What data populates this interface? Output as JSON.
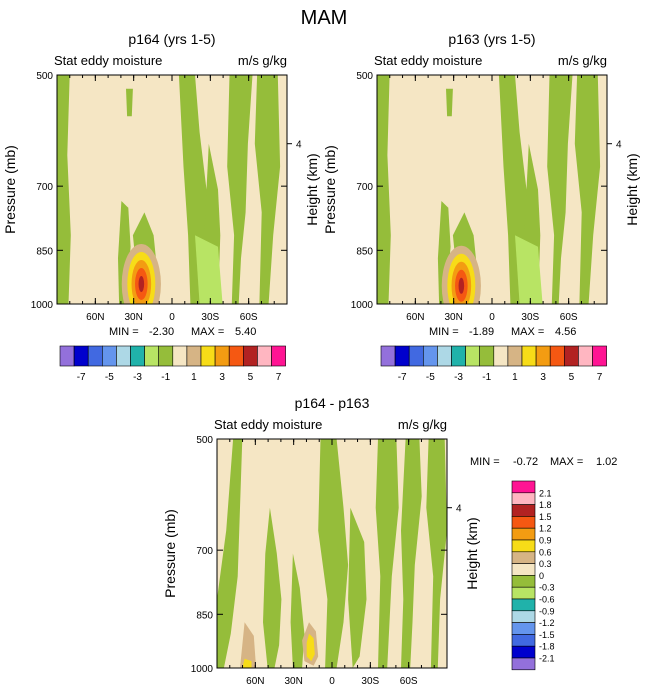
{
  "figure": {
    "title": "MAM",
    "colors": {
      "background": "#f5e6c4",
      "green": "#95bd3a",
      "light_green": "#b8e464",
      "tan": "#d6b485",
      "yellow": "#f7dc18",
      "orange": "#f39c12",
      "red_orange": "#f55812",
      "dark_red": "#b22222",
      "teal": "#1fa3a3"
    }
  },
  "chart_data": [
    {
      "type": "contour",
      "id": "p164",
      "title": "p164 (yrs 1-5)",
      "left_label": "Stat eddy moisture",
      "right_label": "m/s g/kg",
      "ylabel": "Pressure (mb)",
      "y2label": "Height (km)",
      "y_ticks": [
        500,
        700,
        850,
        1000
      ],
      "y2_ticks": [
        4
      ],
      "x_ticks": [
        "60N",
        "30N",
        "0",
        "30S",
        "60S"
      ],
      "x_tick_values": [
        60,
        30,
        0,
        -30,
        -60
      ],
      "xlim": [
        90,
        -90
      ],
      "ylim": [
        1000,
        500
      ],
      "min_label": "MIN =",
      "min": "-2.30",
      "max_label": "MAX =",
      "max": "5.40",
      "max_center": {
        "lat": 24,
        "p": 930
      }
    },
    {
      "type": "contour",
      "id": "p163",
      "title": "p163 (yrs 1-5)",
      "left_label": "Stat eddy moisture",
      "right_label": "m/s g/kg",
      "ylabel": "Pressure (mb)",
      "y2label": "Height (km)",
      "y_ticks": [
        500,
        700,
        850,
        1000
      ],
      "y2_ticks": [
        4
      ],
      "x_ticks": [
        "60N",
        "30N",
        "0",
        "30S",
        "60S"
      ],
      "x_tick_values": [
        60,
        30,
        0,
        -30,
        -60
      ],
      "xlim": [
        90,
        -90
      ],
      "ylim": [
        1000,
        500
      ],
      "min_label": "MIN =",
      "min": "-1.89",
      "max_label": "MAX =",
      "max": "4.56",
      "max_center": {
        "lat": 24,
        "p": 935
      }
    },
    {
      "type": "contour",
      "id": "diff",
      "title": "p164 - p163",
      "left_label": "Stat eddy moisture",
      "right_label": "m/s g/kg",
      "ylabel": "Pressure (mb)",
      "y2label": "Height (km)",
      "y_ticks": [
        500,
        700,
        850,
        1000
      ],
      "y2_ticks": [
        4
      ],
      "x_ticks": [
        "60N",
        "30N",
        "0",
        "30S",
        "60S"
      ],
      "x_tick_values": [
        60,
        30,
        0,
        -30,
        -60
      ],
      "xlim": [
        90,
        -90
      ],
      "ylim": [
        1000,
        500
      ],
      "min_label": "MIN =",
      "min": "-0.72",
      "max_label": "MAX =",
      "max": "1.02"
    }
  ],
  "colorbar_top": {
    "orientation": "horizontal",
    "labels": [
      "-7",
      "-5",
      "-3",
      "-1",
      "1",
      "3",
      "5",
      "7"
    ],
    "colors": [
      "#9370db",
      "#0000cd",
      "#4169e1",
      "#6495ed",
      "#add8e6",
      "#20b2aa",
      "#b8e464",
      "#95bd3a",
      "#f5e6c4",
      "#d6b485",
      "#f7dc18",
      "#f39c12",
      "#f55812",
      "#b22222",
      "#ffb6c1",
      "#ff1493"
    ]
  },
  "colorbar_bottom": {
    "orientation": "vertical",
    "labels": [
      "2.1",
      "1.8",
      "1.5",
      "1.2",
      "0.9",
      "0.6",
      "0.3",
      "0",
      "-0.3",
      "-0.6",
      "-0.9",
      "-1.2",
      "-1.5",
      "-1.8",
      "-2.1"
    ],
    "colors": [
      "#ff1493",
      "#ffb6c1",
      "#b22222",
      "#f55812",
      "#f39c12",
      "#f7dc18",
      "#d6b485",
      "#f5e6c4",
      "#95bd3a",
      "#b8e464",
      "#20b2aa",
      "#add8e6",
      "#6495ed",
      "#4169e1",
      "#0000cd",
      "#9370db"
    ]
  }
}
